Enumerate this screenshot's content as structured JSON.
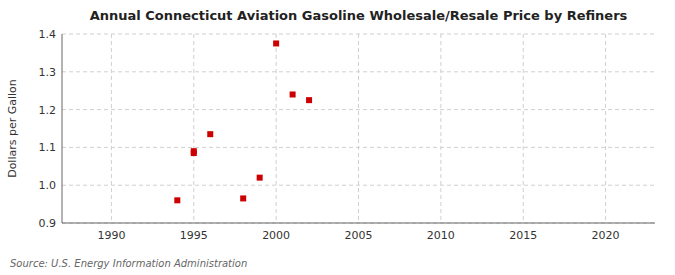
{
  "chart_data": {
    "type": "scatter",
    "title": "Annual Connecticut Aviation Gasoline Wholesale/Resale Price by Refiners",
    "ylabel": "Dollars per Gallon",
    "annotations": [
      "Source: U.S. Energy Information Administration"
    ],
    "x": [
      1994,
      1995,
      1995,
      1996,
      1998,
      1999,
      2000,
      2001,
      2002
    ],
    "values": [
      0.96,
      1.085,
      1.09,
      1.135,
      0.965,
      1.02,
      1.375,
      1.24,
      1.225
    ],
    "color": "#cc0000",
    "marker": "square",
    "xlim": [
      1987,
      2023
    ],
    "ylim": [
      0.9,
      1.4
    ],
    "xticks": [
      1990,
      1995,
      2000,
      2005,
      2010,
      2015,
      2020
    ],
    "yticks": [
      0.9,
      {
        "value": 1.0,
        "label": "1.0"
      },
      1.1,
      1.2,
      1.3,
      1.4
    ],
    "grid": true
  }
}
